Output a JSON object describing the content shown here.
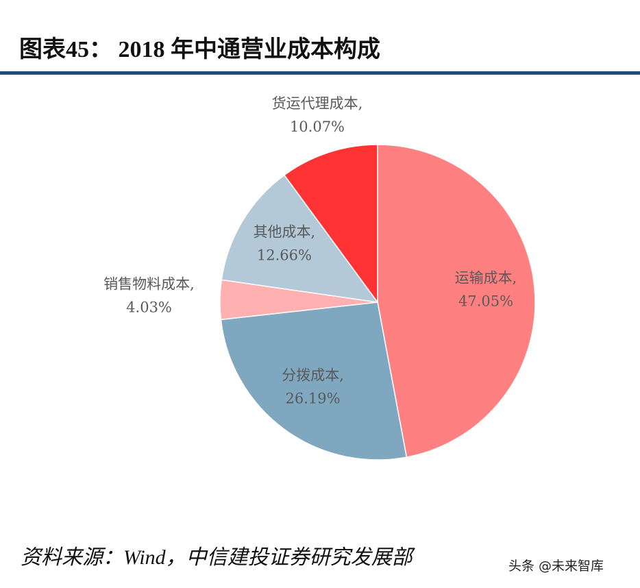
{
  "chart_data": {
    "type": "pie",
    "title": "图表45：  2018 年中通营业成本构成",
    "categories": [
      "运输成本,",
      "分拨成本,",
      "销售物料成本,",
      "其他成本,",
      "货运代理成本,"
    ],
    "values": [
      47.05,
      26.19,
      4.03,
      12.66,
      10.07
    ],
    "value_labels": [
      "47.05%",
      "26.19%",
      "4.03%",
      "12.66%",
      "10.07%"
    ],
    "colors": [
      "#ff8080",
      "#7fa7c0",
      "#ffb0b0",
      "#b3c9d7",
      "#ff3333"
    ],
    "source": "资料来源：Wind，中信建投证券研究发展部",
    "watermark": "头条 @未来智库"
  }
}
